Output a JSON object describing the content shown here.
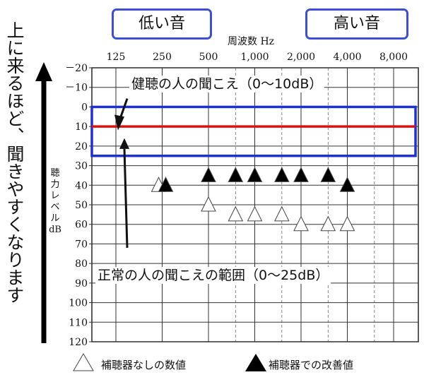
{
  "chart_data": {
    "type": "scatter",
    "title": "",
    "xlabel": "周波数 Hz",
    "ylabel": "聴力レベルdB",
    "x_ticks": [
      "125",
      "250",
      "500",
      "1,000",
      "2,000",
      "4,000",
      "8,000"
    ],
    "y_ticks": [
      "－20",
      "－10",
      "0",
      "10",
      "20",
      "30",
      "40",
      "50",
      "60",
      "70",
      "80",
      "90",
      "100",
      "110",
      "120"
    ],
    "ylim": [
      120,
      -20
    ],
    "x_scale": "log2",
    "grid": true,
    "bands": [
      {
        "label": "正常の人の聞こえの範囲（0〜25dB）",
        "y_range": [
          0,
          25
        ],
        "color": "#1f2fd6"
      }
    ],
    "reference_lines": [
      {
        "label": "健聴の人の聞こえ（0〜10dB）",
        "y": 10,
        "color": "#e01010"
      }
    ],
    "series": [
      {
        "name": "補聴器なしの数値",
        "marker": "open-triangle",
        "points": [
          [
            250,
            40
          ],
          [
            500,
            50
          ],
          [
            750,
            55
          ],
          [
            1000,
            55
          ],
          [
            1500,
            55
          ],
          [
            2000,
            60
          ],
          [
            3000,
            60
          ],
          [
            4000,
            60
          ]
        ]
      },
      {
        "name": "補聴器での改善値",
        "marker": "filled-triangle",
        "points": [
          [
            250,
            40
          ],
          [
            500,
            35
          ],
          [
            750,
            35
          ],
          [
            1000,
            35
          ],
          [
            1500,
            35
          ],
          [
            2000,
            35
          ],
          [
            3000,
            35
          ],
          [
            4000,
            40
          ]
        ]
      }
    ]
  },
  "side_label": "上に来るほど、聞きやすくなります",
  "low_label": "低い音",
  "high_label": "高い音",
  "colors": {
    "accent_blue": "#3d4fd6",
    "band_blue": "#1f2fd6",
    "line_red": "#e01010"
  }
}
